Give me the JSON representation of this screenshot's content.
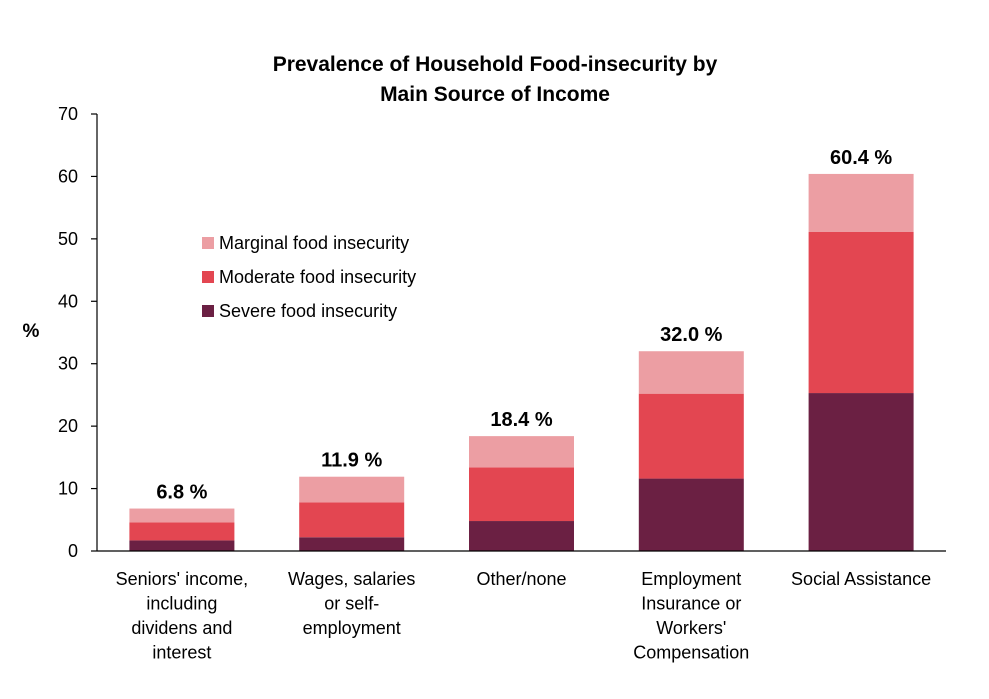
{
  "chart_data": {
    "type": "bar",
    "stacked": true,
    "title_lines": [
      "Prevalence of Household Food-insecurity by",
      "Main Source of Income"
    ],
    "ylabel": "%",
    "xlabel": "",
    "ylim": [
      0,
      70
    ],
    "yticks": [
      0,
      10,
      20,
      30,
      40,
      50,
      60,
      70
    ],
    "grid": false,
    "legend_position": "upper-left",
    "categories": [
      [
        "Seniors' income,",
        "including",
        "dividens and",
        "interest"
      ],
      [
        "Wages, salaries",
        "or self-",
        "employment"
      ],
      [
        "Other/none"
      ],
      [
        "Employment",
        "Insurance or",
        "Workers'",
        "Compensation"
      ],
      [
        "Social Assistance"
      ]
    ],
    "series": [
      {
        "name": "Severe food insecurity",
        "color": "#6b2043",
        "values": [
          1.7,
          2.2,
          4.8,
          11.6,
          25.3
        ]
      },
      {
        "name": "Moderate food insecurity",
        "color": "#e34651",
        "values": [
          2.9,
          5.6,
          8.6,
          13.6,
          25.8
        ]
      },
      {
        "name": "Marginal food insecurity",
        "color": "#ec9ea3",
        "values": [
          2.2,
          4.1,
          5.0,
          6.8,
          9.3
        ]
      }
    ],
    "totals": [
      "6.8 %",
      "11.9 %",
      "18.4 %",
      "32.0 %",
      "60.4 %"
    ],
    "legend_order": [
      "Marginal food insecurity",
      "Moderate food insecurity",
      "Severe food insecurity"
    ]
  }
}
